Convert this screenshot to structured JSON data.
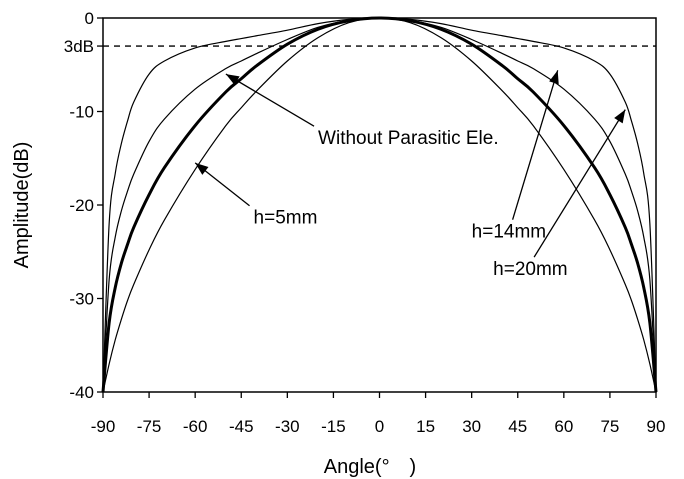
{
  "chart_data": {
    "type": "line",
    "xlabel": "Angle(°　)",
    "ylabel": "Amplitude(dB)",
    "xlim": [
      -90,
      90
    ],
    "ylim": [
      -40,
      0
    ],
    "xticks": [
      -90,
      -75,
      -60,
      -45,
      -30,
      -15,
      0,
      15,
      30,
      45,
      60,
      75,
      90
    ],
    "yticks": [
      {
        "value": 0,
        "label": "0"
      },
      {
        "value": -3,
        "label": "3dB"
      },
      {
        "value": -10,
        "label": "-10"
      },
      {
        "value": -20,
        "label": "-20"
      },
      {
        "value": -30,
        "label": "-30"
      },
      {
        "value": -40,
        "label": "-40"
      }
    ],
    "reference_line": {
      "y": -3,
      "style": "dashed"
    },
    "grid": false,
    "x": [
      -90,
      -88,
      -86,
      -84,
      -82,
      -80,
      -75,
      -70,
      -60,
      -50,
      -45,
      -40,
      -30,
      -20,
      -10,
      0,
      10,
      20,
      30,
      40,
      45,
      50,
      60,
      70,
      75,
      80,
      82,
      84,
      86,
      88,
      90
    ],
    "series": [
      {
        "id": "without",
        "emphasis": true,
        "values": [
          -40,
          -32.6,
          -28.8,
          -26.2,
          -24.2,
          -22.4,
          -18.9,
          -16.0,
          -11.5,
          -7.9,
          -6.5,
          -5.1,
          -2.8,
          -1.2,
          -0.3,
          0,
          -0.3,
          -1.2,
          -2.8,
          -5.1,
          -6.5,
          -7.9,
          -11.5,
          -16.0,
          -18.9,
          -22.4,
          -24.2,
          -26.2,
          -28.8,
          -32.6,
          -40
        ]
      },
      {
        "id": "h5",
        "emphasis": false,
        "values": [
          -40,
          -37.0,
          -34.4,
          -32.2,
          -30.2,
          -28.5,
          -24.8,
          -21.6,
          -16.2,
          -11.5,
          -9.6,
          -7.8,
          -4.6,
          -2.1,
          -0.5,
          0,
          -0.5,
          -2.1,
          -4.6,
          -7.8,
          -9.6,
          -11.5,
          -16.2,
          -21.6,
          -24.8,
          -28.5,
          -30.2,
          -32.2,
          -34.4,
          -37.0,
          -40
        ]
      },
      {
        "id": "h14",
        "emphasis": false,
        "values": [
          -40,
          -28.0,
          -23.4,
          -20.6,
          -18.5,
          -16.7,
          -13.2,
          -10.8,
          -7.6,
          -5.4,
          -4.6,
          -3.8,
          -2.3,
          -1.0,
          -0.25,
          0,
          -0.25,
          -1.0,
          -2.3,
          -3.8,
          -4.6,
          -5.4,
          -7.6,
          -10.8,
          -13.2,
          -16.7,
          -18.5,
          -20.6,
          -23.4,
          -28.0,
          -40
        ]
      },
      {
        "id": "h20",
        "emphasis": false,
        "values": [
          -40,
          -22.0,
          -16.6,
          -13.4,
          -11.0,
          -9.0,
          -6.0,
          -4.6,
          -3.2,
          -2.5,
          -2.2,
          -1.9,
          -1.3,
          -0.6,
          -0.15,
          0,
          -0.15,
          -0.6,
          -1.3,
          -1.9,
          -2.2,
          -2.5,
          -3.2,
          -4.6,
          -6.0,
          -9.0,
          -11.0,
          -13.4,
          -16.6,
          -22.0,
          -40
        ]
      }
    ],
    "annotations": [
      {
        "id": "ann-without",
        "text": "Without Parasitic Ele.",
        "x": -20,
        "y": -13.5,
        "arrow_to": [
          -50,
          -6
        ]
      },
      {
        "id": "ann-h5",
        "text": "h=5mm",
        "x": -41,
        "y": -22,
        "arrow_to": [
          -60,
          -15.5
        ]
      },
      {
        "id": "ann-h14",
        "text": "h=14mm",
        "x": 30,
        "y": -23.5,
        "arrow_to": [
          58,
          -5.6
        ]
      },
      {
        "id": "ann-h20",
        "text": "h=20mm",
        "x": 37,
        "y": -27.5,
        "arrow_to": [
          80,
          -9.8
        ]
      }
    ]
  }
}
